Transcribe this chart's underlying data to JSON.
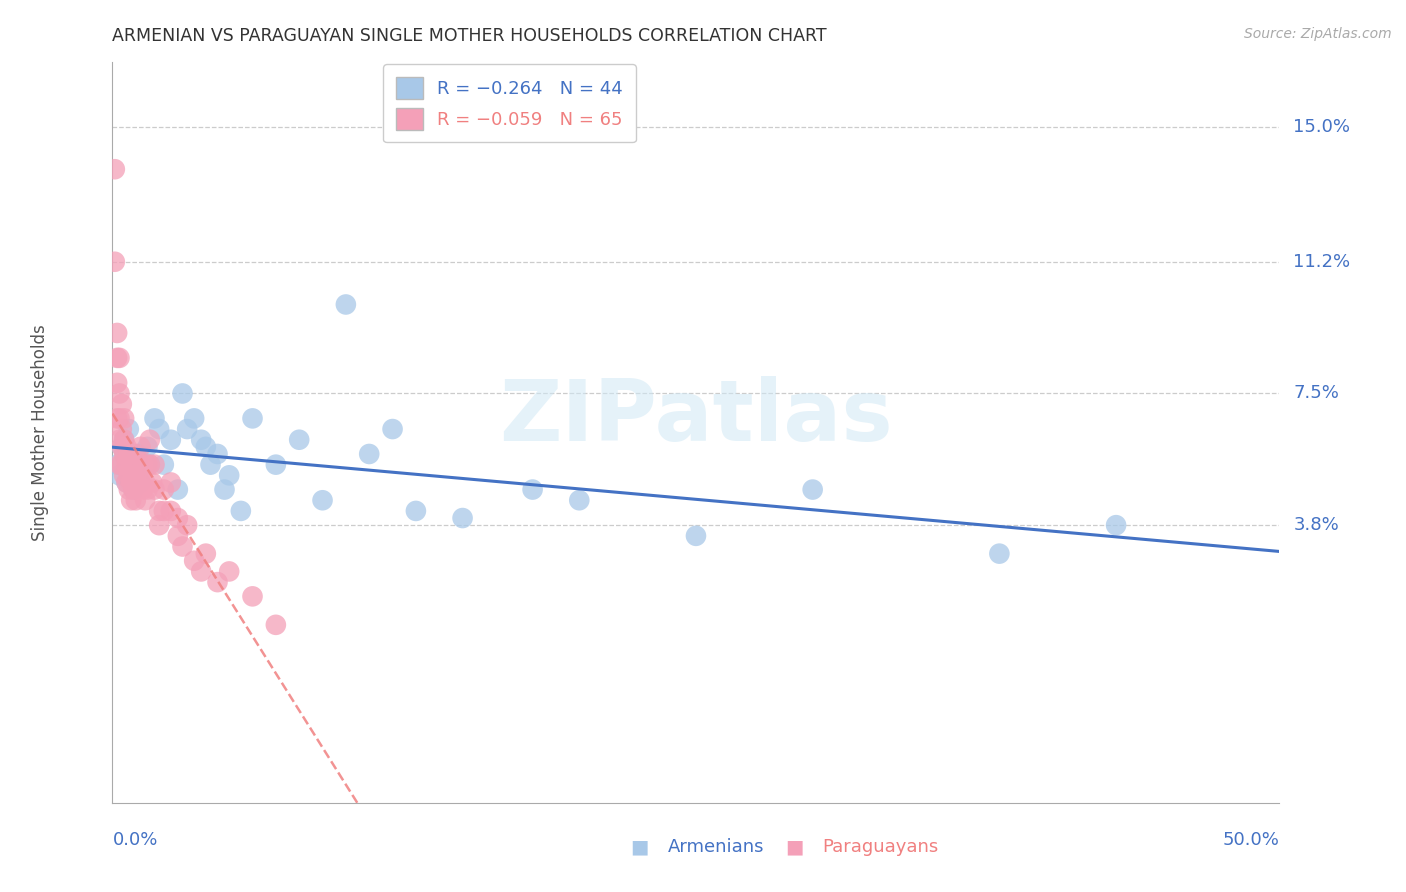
{
  "title": "ARMENIAN VS PARAGUAYAN SINGLE MOTHER HOUSEHOLDS CORRELATION CHART",
  "source": "Source: ZipAtlas.com",
  "ylabel": "Single Mother Households",
  "ytick_labels": [
    "3.8%",
    "7.5%",
    "11.2%",
    "15.0%"
  ],
  "ytick_values": [
    0.038,
    0.075,
    0.112,
    0.15
  ],
  "xmin": 0.0,
  "xmax": 0.5,
  "ymin": -0.04,
  "ymax": 0.168,
  "watermark": "ZIPatlas",
  "legend_armenian": "R = −0.264   N = 44",
  "legend_paraguayan": "R = −0.059   N = 65",
  "armenian_color": "#a8c8e8",
  "paraguayan_color": "#f4a0b8",
  "armenian_line_color": "#4472c4",
  "paraguayan_line_color": "#f08080",
  "grid_color": "#cccccc",
  "armenian_x": [
    0.002,
    0.003,
    0.004,
    0.005,
    0.005,
    0.006,
    0.007,
    0.008,
    0.009,
    0.01,
    0.011,
    0.012,
    0.015,
    0.016,
    0.018,
    0.02,
    0.022,
    0.025,
    0.028,
    0.03,
    0.032,
    0.035,
    0.038,
    0.04,
    0.042,
    0.045,
    0.048,
    0.05,
    0.055,
    0.06,
    0.07,
    0.08,
    0.09,
    0.1,
    0.11,
    0.12,
    0.13,
    0.15,
    0.18,
    0.2,
    0.25,
    0.3,
    0.38,
    0.43
  ],
  "armenian_y": [
    0.055,
    0.052,
    0.06,
    0.058,
    0.062,
    0.05,
    0.065,
    0.053,
    0.048,
    0.055,
    0.058,
    0.05,
    0.06,
    0.055,
    0.068,
    0.065,
    0.055,
    0.062,
    0.048,
    0.075,
    0.065,
    0.068,
    0.062,
    0.06,
    0.055,
    0.058,
    0.048,
    0.052,
    0.042,
    0.068,
    0.055,
    0.062,
    0.045,
    0.1,
    0.058,
    0.065,
    0.042,
    0.04,
    0.048,
    0.045,
    0.035,
    0.048,
    0.03,
    0.038
  ],
  "paraguayan_x": [
    0.001,
    0.001,
    0.002,
    0.002,
    0.002,
    0.002,
    0.003,
    0.003,
    0.003,
    0.003,
    0.003,
    0.004,
    0.004,
    0.004,
    0.004,
    0.005,
    0.005,
    0.005,
    0.005,
    0.006,
    0.006,
    0.006,
    0.007,
    0.007,
    0.007,
    0.008,
    0.008,
    0.008,
    0.009,
    0.009,
    0.01,
    0.01,
    0.01,
    0.011,
    0.011,
    0.012,
    0.012,
    0.013,
    0.013,
    0.014,
    0.014,
    0.015,
    0.015,
    0.016,
    0.016,
    0.017,
    0.018,
    0.018,
    0.02,
    0.02,
    0.022,
    0.022,
    0.025,
    0.025,
    0.028,
    0.028,
    0.03,
    0.032,
    0.035,
    0.038,
    0.04,
    0.045,
    0.05,
    0.06,
    0.07
  ],
  "paraguayan_y": [
    0.138,
    0.112,
    0.092,
    0.085,
    0.078,
    0.068,
    0.085,
    0.075,
    0.068,
    0.062,
    0.055,
    0.072,
    0.065,
    0.06,
    0.055,
    0.068,
    0.062,
    0.058,
    0.052,
    0.06,
    0.055,
    0.05,
    0.058,
    0.052,
    0.048,
    0.055,
    0.05,
    0.045,
    0.052,
    0.048,
    0.058,
    0.052,
    0.045,
    0.055,
    0.048,
    0.06,
    0.052,
    0.055,
    0.048,
    0.05,
    0.045,
    0.055,
    0.048,
    0.062,
    0.055,
    0.05,
    0.055,
    0.048,
    0.042,
    0.038,
    0.048,
    0.042,
    0.05,
    0.042,
    0.04,
    0.035,
    0.032,
    0.038,
    0.028,
    0.025,
    0.03,
    0.022,
    0.025,
    0.018,
    0.01
  ]
}
